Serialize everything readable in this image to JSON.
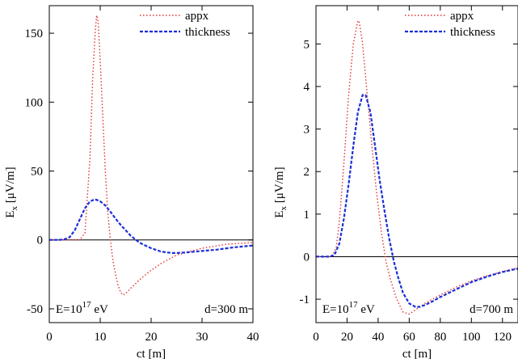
{
  "chart_data": [
    {
      "type": "line",
      "xlabel": "ct [m]",
      "ylabel": "E",
      "ylabel_sub": "x",
      "ylabel_unit": " [μV/m]",
      "xlim": [
        0,
        40
      ],
      "ylim": [
        -60,
        170
      ],
      "xticks": [
        0,
        10,
        20,
        30,
        40
      ],
      "yticks": [
        -50,
        0,
        50,
        100,
        150
      ],
      "zero_line": true,
      "legend_position": "top-right",
      "energy_label": "E=10",
      "energy_exp": "17",
      "energy_unit": " eV",
      "distance_label": "d=300 m",
      "series": [
        {
          "name": "appx",
          "color": "#e03030",
          "style": "dotted",
          "x": [
            0,
            6,
            7,
            8,
            8.5,
            9,
            9.3,
            9.6,
            10,
            10.5,
            11,
            11.5,
            12,
            12.5,
            13,
            13.5,
            14,
            14.5,
            15,
            16,
            18,
            20,
            22,
            25,
            30,
            35,
            40
          ],
          "y": [
            0,
            0,
            5,
            60,
            115,
            150,
            163,
            158,
            130,
            90,
            50,
            20,
            0,
            -15,
            -25,
            -33,
            -38,
            -40,
            -39,
            -35,
            -28,
            -22,
            -17,
            -11,
            -6,
            -3,
            -2
          ]
        },
        {
          "name": "thickness",
          "color": "#1a2fd8",
          "style": "dashed",
          "x": [
            0,
            2,
            3,
            4,
            5,
            6,
            7,
            8,
            9,
            10,
            11,
            12,
            13,
            14,
            15,
            16,
            17,
            18,
            20,
            22,
            24,
            25,
            27,
            30,
            33,
            36,
            40
          ],
          "y": [
            0,
            0,
            0.5,
            2,
            7,
            15,
            23,
            28,
            29.5,
            28,
            25,
            20.5,
            15.5,
            11,
            7,
            3,
            0,
            -2.5,
            -6,
            -8.5,
            -9.5,
            -9.5,
            -9,
            -8,
            -7,
            -5.5,
            -4
          ]
        }
      ]
    },
    {
      "type": "line",
      "xlabel": "ct [m]",
      "ylabel": "E",
      "ylabel_sub": "x",
      "ylabel_unit": " [μV/m]",
      "xlim": [
        0,
        130
      ],
      "ylim": [
        -1.55,
        5.9
      ],
      "xticks": [
        0,
        20,
        40,
        60,
        80,
        100,
        120
      ],
      "yticks": [
        -1,
        0,
        1,
        2,
        3,
        4,
        5
      ],
      "zero_line": true,
      "legend_position": "top-right",
      "energy_label": "E=10",
      "energy_exp": "17",
      "energy_unit": " eV",
      "distance_label": "d=700 m",
      "series": [
        {
          "name": "appx",
          "color": "#e03030",
          "style": "dotted",
          "x": [
            0,
            10,
            13,
            15,
            18,
            21,
            24,
            27,
            28,
            30,
            33,
            36,
            39,
            42,
            45,
            48,
            52,
            56,
            60,
            64,
            70,
            80,
            90,
            100,
            110,
            120,
            130
          ],
          "y": [
            0,
            0,
            0.2,
            0.8,
            2.2,
            3.8,
            5.0,
            5.55,
            5.5,
            5.0,
            3.8,
            2.6,
            1.5,
            0.6,
            -0.1,
            -0.55,
            -1.0,
            -1.3,
            -1.35,
            -1.25,
            -1.1,
            -0.9,
            -0.72,
            -0.57,
            -0.45,
            -0.35,
            -0.26
          ]
        },
        {
          "name": "thickness",
          "color": "#1a2fd8",
          "style": "dashed",
          "x": [
            0,
            9,
            12,
            15,
            18,
            21,
            24,
            27,
            30,
            32,
            35,
            38,
            41,
            44,
            47,
            50,
            53,
            56,
            60,
            64,
            67,
            70,
            75,
            80,
            90,
            100,
            110,
            120,
            130
          ],
          "y": [
            0,
            0,
            0.05,
            0.3,
            0.9,
            1.7,
            2.6,
            3.4,
            3.8,
            3.8,
            3.4,
            2.6,
            1.8,
            1.1,
            0.45,
            -0.1,
            -0.5,
            -0.85,
            -1.1,
            -1.18,
            -1.18,
            -1.14,
            -1.05,
            -0.95,
            -0.77,
            -0.6,
            -0.47,
            -0.36,
            -0.28
          ]
        }
      ]
    }
  ]
}
